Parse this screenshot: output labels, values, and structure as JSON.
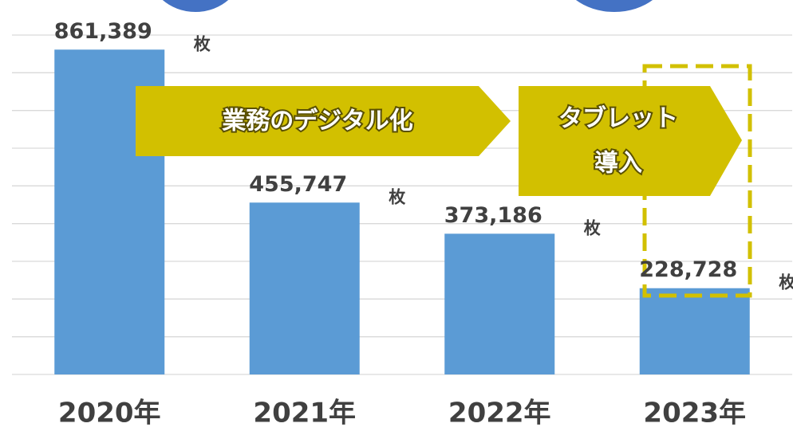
{
  "chart_data": {
    "type": "bar",
    "categories": [
      "2020年",
      "2021年",
      "2022年",
      "2023年"
    ],
    "values": [
      861389,
      455747,
      373186,
      228728
    ],
    "value_labels": [
      "861,389",
      "455,747",
      "373,186",
      "228,728"
    ],
    "unit": "枚",
    "color": "#5b9bd5",
    "ylim": [
      0,
      900000
    ],
    "yticks": [
      0,
      100000,
      200000,
      300000,
      400000,
      500000,
      600000,
      700000,
      800000,
      900000
    ],
    "grid": true,
    "annotations": [
      "業務のデジタル化",
      [
        "タブレット",
        "導入"
      ]
    ]
  }
}
